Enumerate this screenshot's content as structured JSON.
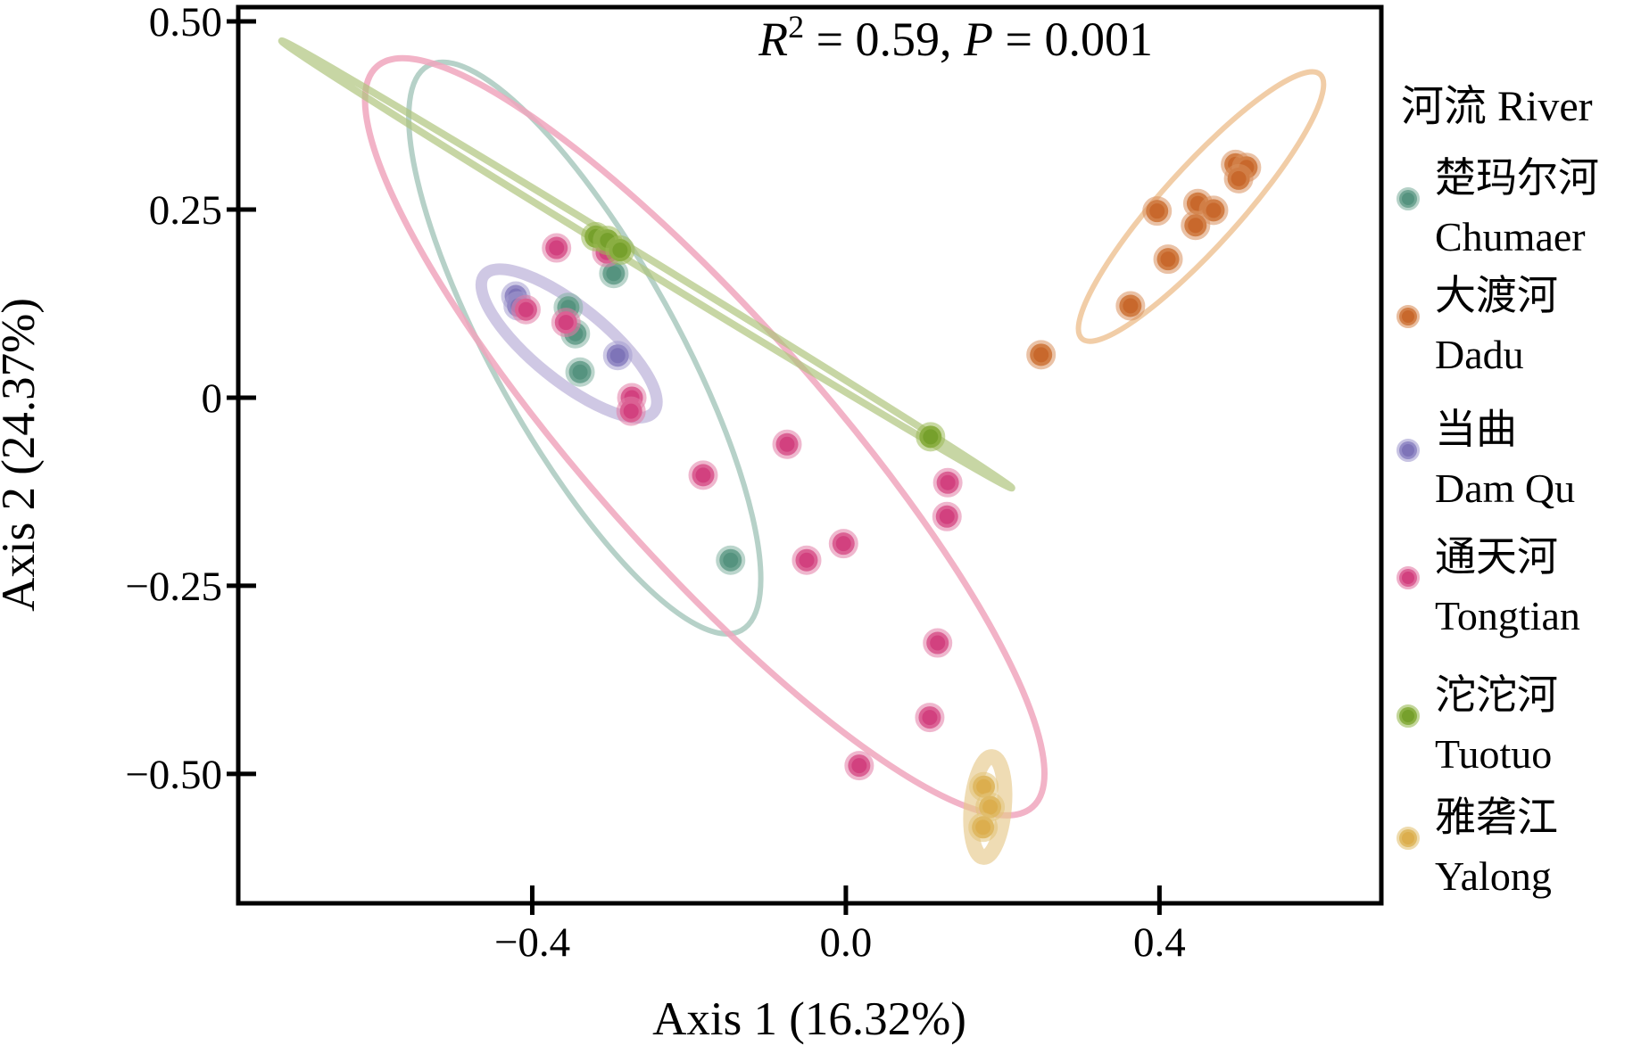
{
  "figure": {
    "annotation": {
      "r_sym": "R",
      "r_sup": "2",
      "r_eq": " = 0.59, ",
      "p_sym": "P",
      "p_eq": " = 0.001"
    }
  },
  "legend": {
    "title": "河流 River",
    "entries": [
      {
        "cn": "楚玛尔河",
        "en": "Chumaer"
      },
      {
        "cn": "大渡河",
        "en": "Dadu"
      },
      {
        "cn": "当曲",
        "en": "Dam Qu"
      },
      {
        "cn": "通天河",
        "en": "Tongtian"
      },
      {
        "cn": "沱沱河",
        "en": "Tuotuo"
      },
      {
        "cn": "雅砻江",
        "en": "Yalong"
      }
    ]
  },
  "chart_data": {
    "type": "scatter",
    "title": "",
    "stats": {
      "r_squared": 0.59,
      "p_value": 0.001
    },
    "x_axis": {
      "label": "Axis 1 (16.32%)",
      "tick_values": [
        -0.4,
        0.0,
        0.4
      ],
      "tick_labels": [
        "−0.4",
        "0.0",
        "0.4"
      ],
      "range": [
        -0.775,
        0.683
      ],
      "grid": false
    },
    "y_axis": {
      "label": "Axis 2 (24.37%)",
      "tick_values": [
        0.5,
        0.25,
        0,
        -0.25,
        -0.5
      ],
      "tick_labels": [
        "0.50",
        "0.25",
        "0",
        "−0.25",
        "−0.50"
      ],
      "range": [
        -0.672,
        0.519
      ],
      "grid": false
    },
    "legend_position": "right",
    "series": [
      {
        "name": "Chumaer",
        "name_cn": "楚玛尔河",
        "color": "#55937f",
        "ring_color": "#84b3a2",
        "points": [
          [
            -0.296,
            0.165
          ],
          [
            -0.354,
            0.12
          ],
          [
            -0.345,
            0.085
          ],
          [
            -0.339,
            0.034
          ],
          [
            -0.147,
            -0.216
          ]
        ],
        "ellipse": {
          "cx": -0.333,
          "cy": 0.066,
          "rx": 0.412,
          "ry": 0.122,
          "angle": 61,
          "color": "#86b2a3",
          "opacity": 0.6,
          "stroke_width": 6
        }
      },
      {
        "name": "Dadu",
        "name_cn": "大渡河",
        "color": "#c8682c",
        "ring_color": "#d98f5c",
        "points": [
          [
            0.497,
            0.31
          ],
          [
            0.511,
            0.306
          ],
          [
            0.501,
            0.291
          ],
          [
            0.449,
            0.258
          ],
          [
            0.469,
            0.249
          ],
          [
            0.397,
            0.248
          ],
          [
            0.446,
            0.229
          ],
          [
            0.411,
            0.184
          ],
          [
            0.363,
            0.122
          ],
          [
            0.249,
            0.057
          ]
        ],
        "ellipse": {
          "cx": 0.453,
          "cy": 0.254,
          "rx": 0.227,
          "ry": 0.052,
          "angle": -48,
          "color": "#efc498",
          "opacity": 0.85,
          "stroke_width": 6
        }
      },
      {
        "name": "Dam Qu",
        "name_cn": "当曲",
        "color": "#7e74b8",
        "ring_color": "#a49dd0",
        "points": [
          [
            -0.421,
            0.135
          ],
          [
            -0.418,
            0.122
          ],
          [
            -0.291,
            0.056
          ]
        ],
        "ellipse": {
          "cx": -0.353,
          "cy": 0.072,
          "rx": 0.139,
          "ry": 0.049,
          "angle": 39,
          "color": "#a79bce",
          "opacity": 0.55,
          "stroke_width": 13
        }
      },
      {
        "name": "Tongtian",
        "name_cn": "通天河",
        "color": "#d2417f",
        "ring_color": "#e27ca6",
        "points": [
          [
            -0.369,
            0.199
          ],
          [
            -0.305,
            0.193
          ],
          [
            -0.408,
            0.117
          ],
          [
            -0.357,
            0.1
          ],
          [
            -0.273,
            0.0
          ],
          [
            -0.274,
            -0.018
          ],
          [
            -0.182,
            -0.103
          ],
          [
            -0.075,
            -0.062
          ],
          [
            0.13,
            -0.113
          ],
          [
            0.129,
            -0.158
          ],
          [
            -0.003,
            -0.194
          ],
          [
            -0.05,
            -0.216
          ],
          [
            0.117,
            -0.326
          ],
          [
            0.107,
            -0.425
          ],
          [
            0.017,
            -0.489
          ]
        ],
        "ellipse": {
          "cx": -0.18,
          "cy": -0.052,
          "rx": 0.631,
          "ry": 0.158,
          "angle": 48.5,
          "color": "#f0a6bd",
          "opacity": 0.85,
          "stroke_width": 7
        }
      },
      {
        "name": "Tuotuo",
        "name_cn": "沱沱河",
        "color": "#76a02c",
        "ring_color": "#9aba55",
        "points": [
          [
            -0.319,
            0.214
          ],
          [
            -0.304,
            0.209
          ],
          [
            -0.288,
            0.196
          ],
          [
            0.108,
            -0.052
          ]
        ],
        "ellipse": {
          "cx": -0.254,
          "cy": 0.177,
          "rx": 0.546,
          "ry": 0.008,
          "angle": 31.5,
          "color": "#afc57e",
          "opacity": 0.7,
          "stroke_width": 8
        }
      },
      {
        "name": "Yalong",
        "name_cn": "雅砻江",
        "color": "#dcae4e",
        "ring_color": "#e2c376",
        "points": [
          [
            0.176,
            -0.517
          ],
          [
            0.184,
            -0.544
          ],
          [
            0.175,
            -0.571
          ]
        ],
        "ellipse": {
          "cx": 0.181,
          "cy": -0.544,
          "rx": 0.021,
          "ry": 0.067,
          "angle": 5,
          "color": "#e6c98c",
          "opacity": 0.65,
          "stroke_width": 17
        }
      }
    ]
  }
}
